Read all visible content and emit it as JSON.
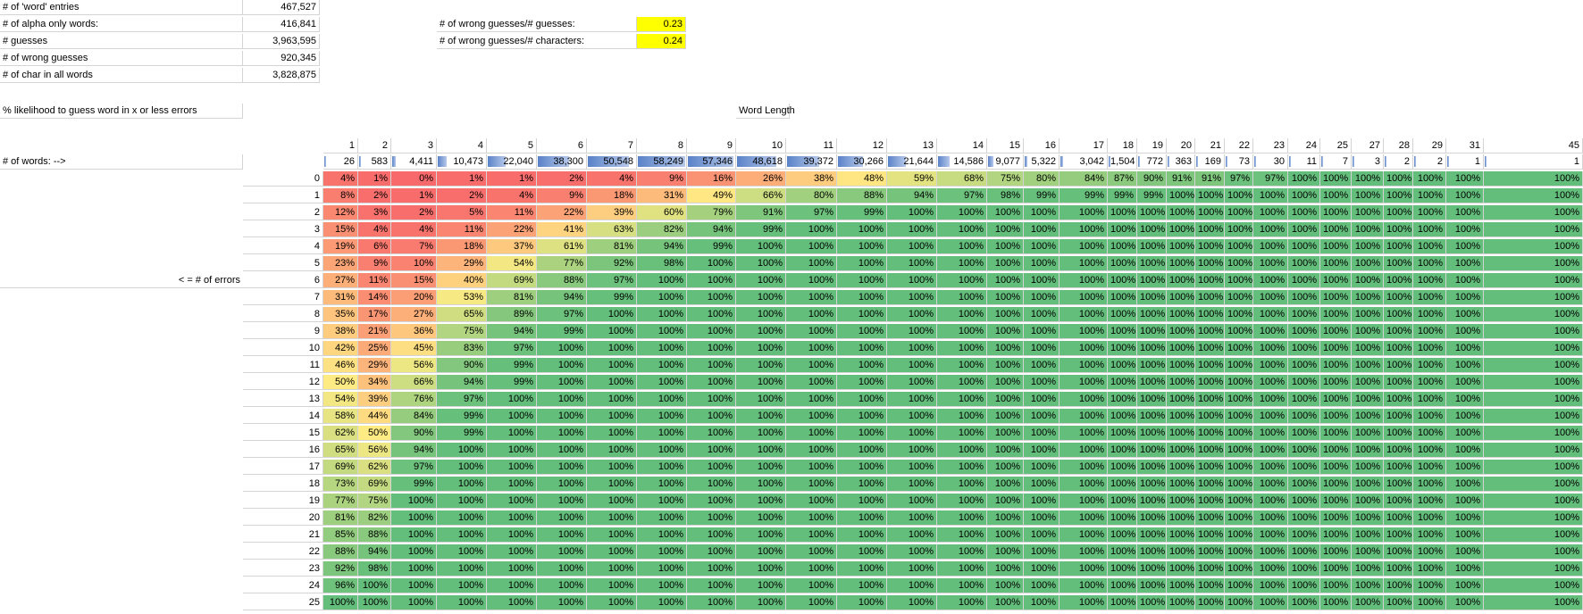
{
  "stats": {
    "word_entries": {
      "label": "# of 'word' entries",
      "value": "467,527"
    },
    "alpha_words": {
      "label": "# of alpha only words:",
      "value": "416,841"
    },
    "guesses": {
      "label": "# guesses",
      "value": "3,963,595"
    },
    "wrong_guesses": {
      "label": "# of wrong guesses",
      "value": "920,345"
    },
    "char_all_words": {
      "label": "# of char in all words",
      "value": "3,828,875"
    }
  },
  "ratios": {
    "wrong_per_guess": {
      "label": "# of wrong guesses/# guesses:",
      "value": "0.23"
    },
    "wrong_per_char": {
      "label": "# of wrong guesses/# characters:",
      "value": "0.24"
    }
  },
  "likelihood_title": "% likelihood to guess word in x or less errors",
  "word_length_title": "Word Length",
  "words_row_label": "# of words: -->",
  "errors_axis_label": "< = # of errors",
  "lengths": [
    "1",
    "2",
    "3",
    "4",
    "5",
    "6",
    "7",
    "8",
    "9",
    "10",
    "11",
    "12",
    "13",
    "14",
    "15",
    "16",
    "17",
    "18",
    "19",
    "20",
    "21",
    "22",
    "23",
    "24",
    "25",
    "27",
    "28",
    "29",
    "31",
    "45"
  ],
  "word_counts": [
    "26",
    "583",
    "4,411",
    "10,473",
    "22,040",
    "38,300",
    "50,548",
    "58,249",
    "57,346",
    "48,618",
    "39,372",
    "30,266",
    "21,644",
    "14,586",
    "9,077",
    "5,322",
    "3,042",
    "1,504",
    "772",
    "363",
    "169",
    "73",
    "30",
    "11",
    "7",
    "3",
    "2",
    "2",
    "1",
    "1"
  ],
  "word_count_max": 58249,
  "error_rows": [
    "0",
    "1",
    "2",
    "3",
    "4",
    "5",
    "6",
    "7",
    "8",
    "9",
    "10",
    "11",
    "12",
    "13",
    "14",
    "15",
    "16",
    "17",
    "18",
    "19",
    "20",
    "21",
    "22",
    "23",
    "24",
    "25"
  ],
  "matrix": [
    [
      4,
      1,
      0,
      1,
      1,
      2,
      4,
      9,
      16,
      26,
      38,
      48,
      59,
      68,
      75,
      80,
      84,
      87,
      90,
      91,
      91,
      97,
      97,
      100,
      100,
      100,
      100,
      100,
      100,
      100
    ],
    [
      8,
      2,
      1,
      2,
      4,
      9,
      18,
      31,
      49,
      66,
      80,
      88,
      94,
      97,
      98,
      99,
      99,
      99,
      99,
      100,
      100,
      100,
      100,
      100,
      100,
      100,
      100,
      100,
      100,
      100
    ],
    [
      12,
      3,
      2,
      5,
      11,
      22,
      39,
      60,
      79,
      91,
      97,
      99,
      100,
      100,
      100,
      100,
      100,
      100,
      100,
      100,
      100,
      100,
      100,
      100,
      100,
      100,
      100,
      100,
      100,
      100
    ],
    [
      15,
      4,
      4,
      11,
      22,
      41,
      63,
      82,
      94,
      99,
      100,
      100,
      100,
      100,
      100,
      100,
      100,
      100,
      100,
      100,
      100,
      100,
      100,
      100,
      100,
      100,
      100,
      100,
      100,
      100
    ],
    [
      19,
      6,
      7,
      18,
      37,
      61,
      81,
      94,
      99,
      100,
      100,
      100,
      100,
      100,
      100,
      100,
      100,
      100,
      100,
      100,
      100,
      100,
      100,
      100,
      100,
      100,
      100,
      100,
      100,
      100
    ],
    [
      23,
      9,
      10,
      29,
      54,
      77,
      92,
      98,
      100,
      100,
      100,
      100,
      100,
      100,
      100,
      100,
      100,
      100,
      100,
      100,
      100,
      100,
      100,
      100,
      100,
      100,
      100,
      100,
      100,
      100
    ],
    [
      27,
      11,
      15,
      40,
      69,
      88,
      97,
      100,
      100,
      100,
      100,
      100,
      100,
      100,
      100,
      100,
      100,
      100,
      100,
      100,
      100,
      100,
      100,
      100,
      100,
      100,
      100,
      100,
      100,
      100
    ],
    [
      31,
      14,
      20,
      53,
      81,
      94,
      99,
      100,
      100,
      100,
      100,
      100,
      100,
      100,
      100,
      100,
      100,
      100,
      100,
      100,
      100,
      100,
      100,
      100,
      100,
      100,
      100,
      100,
      100,
      100
    ],
    [
      35,
      17,
      27,
      65,
      89,
      97,
      100,
      100,
      100,
      100,
      100,
      100,
      100,
      100,
      100,
      100,
      100,
      100,
      100,
      100,
      100,
      100,
      100,
      100,
      100,
      100,
      100,
      100,
      100,
      100
    ],
    [
      38,
      21,
      36,
      75,
      94,
      99,
      100,
      100,
      100,
      100,
      100,
      100,
      100,
      100,
      100,
      100,
      100,
      100,
      100,
      100,
      100,
      100,
      100,
      100,
      100,
      100,
      100,
      100,
      100,
      100
    ],
    [
      42,
      25,
      45,
      83,
      97,
      100,
      100,
      100,
      100,
      100,
      100,
      100,
      100,
      100,
      100,
      100,
      100,
      100,
      100,
      100,
      100,
      100,
      100,
      100,
      100,
      100,
      100,
      100,
      100,
      100
    ],
    [
      46,
      29,
      56,
      90,
      99,
      100,
      100,
      100,
      100,
      100,
      100,
      100,
      100,
      100,
      100,
      100,
      100,
      100,
      100,
      100,
      100,
      100,
      100,
      100,
      100,
      100,
      100,
      100,
      100,
      100
    ],
    [
      50,
      34,
      66,
      94,
      99,
      100,
      100,
      100,
      100,
      100,
      100,
      100,
      100,
      100,
      100,
      100,
      100,
      100,
      100,
      100,
      100,
      100,
      100,
      100,
      100,
      100,
      100,
      100,
      100,
      100
    ],
    [
      54,
      39,
      76,
      97,
      100,
      100,
      100,
      100,
      100,
      100,
      100,
      100,
      100,
      100,
      100,
      100,
      100,
      100,
      100,
      100,
      100,
      100,
      100,
      100,
      100,
      100,
      100,
      100,
      100,
      100
    ],
    [
      58,
      44,
      84,
      99,
      100,
      100,
      100,
      100,
      100,
      100,
      100,
      100,
      100,
      100,
      100,
      100,
      100,
      100,
      100,
      100,
      100,
      100,
      100,
      100,
      100,
      100,
      100,
      100,
      100,
      100
    ],
    [
      62,
      50,
      90,
      99,
      100,
      100,
      100,
      100,
      100,
      100,
      100,
      100,
      100,
      100,
      100,
      100,
      100,
      100,
      100,
      100,
      100,
      100,
      100,
      100,
      100,
      100,
      100,
      100,
      100,
      100
    ],
    [
      65,
      56,
      94,
      100,
      100,
      100,
      100,
      100,
      100,
      100,
      100,
      100,
      100,
      100,
      100,
      100,
      100,
      100,
      100,
      100,
      100,
      100,
      100,
      100,
      100,
      100,
      100,
      100,
      100,
      100
    ],
    [
      69,
      62,
      97,
      100,
      100,
      100,
      100,
      100,
      100,
      100,
      100,
      100,
      100,
      100,
      100,
      100,
      100,
      100,
      100,
      100,
      100,
      100,
      100,
      100,
      100,
      100,
      100,
      100,
      100,
      100
    ],
    [
      73,
      69,
      99,
      100,
      100,
      100,
      100,
      100,
      100,
      100,
      100,
      100,
      100,
      100,
      100,
      100,
      100,
      100,
      100,
      100,
      100,
      100,
      100,
      100,
      100,
      100,
      100,
      100,
      100,
      100
    ],
    [
      77,
      75,
      100,
      100,
      100,
      100,
      100,
      100,
      100,
      100,
      100,
      100,
      100,
      100,
      100,
      100,
      100,
      100,
      100,
      100,
      100,
      100,
      100,
      100,
      100,
      100,
      100,
      100,
      100,
      100
    ],
    [
      81,
      82,
      100,
      100,
      100,
      100,
      100,
      100,
      100,
      100,
      100,
      100,
      100,
      100,
      100,
      100,
      100,
      100,
      100,
      100,
      100,
      100,
      100,
      100,
      100,
      100,
      100,
      100,
      100,
      100
    ],
    [
      85,
      88,
      100,
      100,
      100,
      100,
      100,
      100,
      100,
      100,
      100,
      100,
      100,
      100,
      100,
      100,
      100,
      100,
      100,
      100,
      100,
      100,
      100,
      100,
      100,
      100,
      100,
      100,
      100,
      100
    ],
    [
      88,
      94,
      100,
      100,
      100,
      100,
      100,
      100,
      100,
      100,
      100,
      100,
      100,
      100,
      100,
      100,
      100,
      100,
      100,
      100,
      100,
      100,
      100,
      100,
      100,
      100,
      100,
      100,
      100,
      100
    ],
    [
      92,
      98,
      100,
      100,
      100,
      100,
      100,
      100,
      100,
      100,
      100,
      100,
      100,
      100,
      100,
      100,
      100,
      100,
      100,
      100,
      100,
      100,
      100,
      100,
      100,
      100,
      100,
      100,
      100,
      100
    ],
    [
      96,
      100,
      100,
      100,
      100,
      100,
      100,
      100,
      100,
      100,
      100,
      100,
      100,
      100,
      100,
      100,
      100,
      100,
      100,
      100,
      100,
      100,
      100,
      100,
      100,
      100,
      100,
      100,
      100,
      100
    ],
    [
      100,
      100,
      100,
      100,
      100,
      100,
      100,
      100,
      100,
      100,
      100,
      100,
      100,
      100,
      100,
      100,
      100,
      100,
      100,
      100,
      100,
      100,
      100,
      100,
      100,
      100,
      100,
      100,
      100,
      100
    ]
  ],
  "colors": {
    "scale_low": "#f8696b",
    "scale_mid": "#ffeb84",
    "scale_high": "#63be7b",
    "highlight": "#ffff00",
    "data_bar": "#5a82c8",
    "gridline": "#d4d4d4"
  }
}
